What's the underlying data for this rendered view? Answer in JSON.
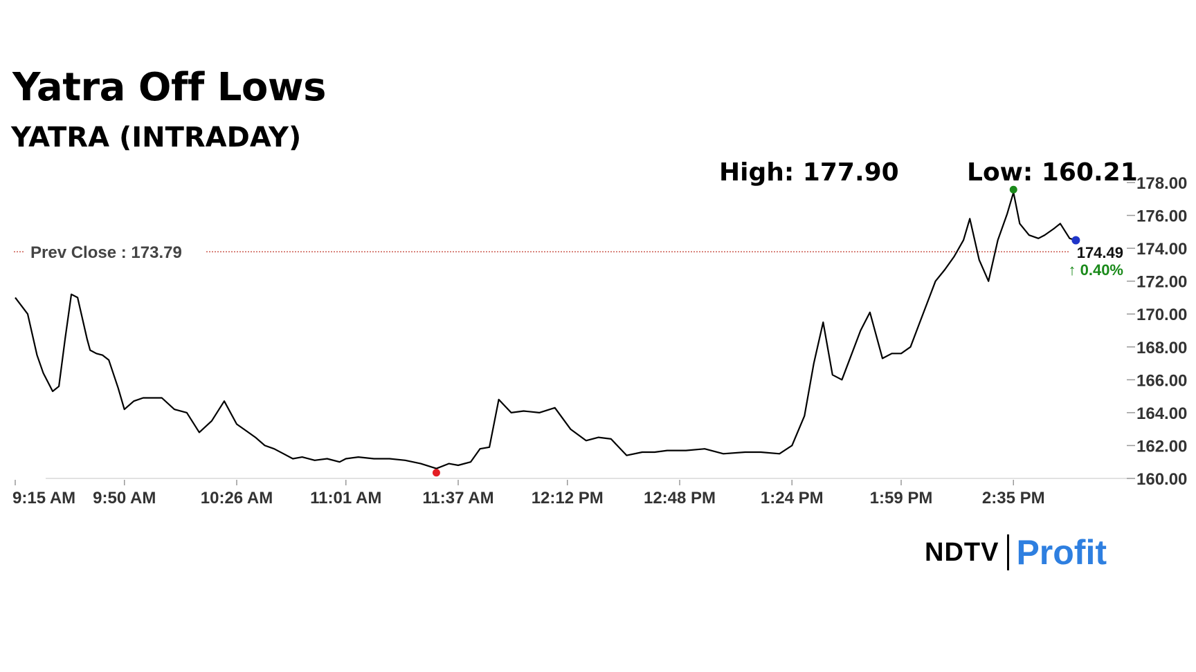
{
  "header": {
    "title": "Yatra Off Lows",
    "subtitle": "YATRA (INTRADAY)"
  },
  "stats": {
    "high_label": "High: 177.90",
    "low_label": "Low: 160.21"
  },
  "brand": {
    "ndtv": "NDTV",
    "profit": "Profit",
    "ndtv_color": "#000000",
    "ndtv_dot_color": "#e31e24",
    "profit_color": "#2e7fe0"
  },
  "colors": {
    "line": "#000000",
    "prev_close": "#c0392b",
    "high_marker": "#1a8a1a",
    "low_marker": "#e31e24",
    "last_marker": "#1f35c9",
    "change_up": "#1a8a1a"
  },
  "chart_data": {
    "type": "line",
    "title": "Yatra Off Lows",
    "subtitle": "YATRA (INTRADAY)",
    "xlabel": "",
    "ylabel": "",
    "ylim": [
      160,
      178
    ],
    "y_ticks": [
      "160.00",
      "162.00",
      "164.00",
      "166.00",
      "168.00",
      "170.00",
      "172.00",
      "174.00",
      "176.00",
      "178.00"
    ],
    "x_ticks": [
      "9:15 AM",
      "9:50 AM",
      "10:26 AM",
      "11:01 AM",
      "11:37 AM",
      "12:12 PM",
      "12:48 PM",
      "1:24 PM",
      "1:59 PM",
      "2:35 PM"
    ],
    "grid": false,
    "prev_close": 173.79,
    "prev_close_label": "Prev Close : 173.79",
    "last_price_label": "174.49",
    "change_label": "↑ 0.40%",
    "high_value": 177.9,
    "low_value": 160.21,
    "series": [
      {
        "x": [
          "9:15 AM",
          "9:17 AM",
          "9:19 AM",
          "9:22 AM",
          "9:24 AM",
          "9:27 AM",
          "9:29 AM",
          "9:31 AM",
          "9:33 AM",
          "9:35 AM",
          "9:38 AM",
          "9:39 AM",
          "9:41 AM",
          "9:43 AM",
          "9:45 AM",
          "9:48 AM",
          "9:50 AM",
          "9:53 AM",
          "9:56 AM",
          "9:58 AM",
          "10:02 AM",
          "10:06 AM",
          "10:10 AM",
          "10:14 AM",
          "10:18 AM",
          "10:22 AM",
          "10:26 AM",
          "10:29 AM",
          "10:32 AM",
          "10:35 AM",
          "10:38 AM",
          "10:41 AM",
          "10:44 AM",
          "10:47 AM",
          "10:51 AM",
          "10:55 AM",
          "10:59 AM",
          "11:01 AM",
          "11:05 AM",
          "11:10 AM",
          "11:15 AM",
          "11:20 AM",
          "11:25 AM",
          "11:30 AM",
          "11:34 AM",
          "11:37 AM",
          "11:41 AM",
          "11:44 AM",
          "11:47 AM",
          "11:50 AM",
          "11:54 AM",
          "11:58 AM",
          "12:03 PM",
          "12:08 PM",
          "12:13 PM",
          "12:18 PM",
          "12:22 PM",
          "12:26 PM",
          "12:31 PM",
          "12:36 PM",
          "12:40 PM",
          "12:44 PM",
          "12:50 PM",
          "12:56 PM",
          "1:02 PM",
          "1:09 PM",
          "1:14 PM",
          "1:20 PM",
          "1:24 PM",
          "1:28 PM",
          "1:31 PM",
          "1:34 PM",
          "1:37 PM",
          "1:40 PM",
          "1:43 PM",
          "1:46 PM",
          "1:49 PM",
          "1:53 PM",
          "1:56 PM",
          "1:59 PM",
          "2:02 PM",
          "2:05 PM",
          "2:08 PM",
          "2:10 PM",
          "2:13 PM",
          "2:16 PM",
          "2:19 PM",
          "2:21 PM",
          "2:24 PM",
          "2:27 PM",
          "2:30 PM",
          "2:33 PM",
          "2:35 PM",
          "2:37 PM",
          "2:40 PM",
          "2:43 PM",
          "2:45 PM",
          "2:48 PM",
          "2:50 PM",
          "2:53 PM",
          "2:55 PM"
        ],
        "values": [
          171.0,
          170.5,
          170.0,
          167.5,
          166.4,
          165.3,
          165.6,
          168.5,
          171.2,
          171.0,
          168.5,
          167.8,
          167.6,
          167.5,
          167.2,
          165.5,
          164.2,
          164.7,
          164.9,
          164.9,
          164.9,
          164.2,
          164.0,
          162.8,
          163.5,
          164.7,
          163.3,
          162.9,
          162.5,
          162.0,
          161.8,
          161.5,
          161.2,
          161.3,
          161.1,
          161.2,
          161.0,
          161.2,
          161.3,
          161.2,
          161.2,
          161.1,
          160.9,
          160.6,
          160.9,
          160.8,
          161.0,
          161.8,
          161.9,
          164.8,
          164.0,
          164.1,
          164.0,
          164.3,
          163.0,
          162.3,
          162.5,
          162.4,
          161.4,
          161.6,
          161.6,
          161.7,
          161.7,
          161.8,
          161.5,
          161.6,
          161.6,
          161.5,
          162.0,
          163.8,
          167.0,
          169.5,
          166.3,
          166.0,
          167.5,
          169.0,
          170.1,
          167.3,
          167.6,
          167.6,
          168.0,
          169.5,
          171.0,
          172.0,
          172.7,
          173.5,
          174.5,
          175.8,
          173.3,
          172.0,
          174.5,
          176.1,
          177.4,
          175.5,
          174.8,
          174.6,
          174.8,
          175.2,
          175.5,
          174.6,
          174.49
        ]
      }
    ]
  }
}
